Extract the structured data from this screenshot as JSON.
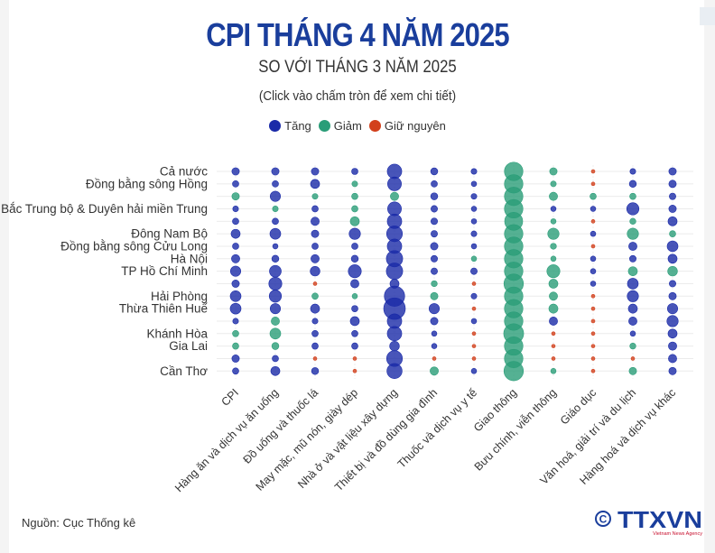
{
  "title": "CPI THÁNG 4 NĂM 2025",
  "subtitle": "SO VỚI THÁNG 3 NĂM 2025",
  "note": "(Click vào chấm tròn để xem chi tiết)",
  "legend": [
    {
      "label": "Tăng",
      "color": "#1a2aa8"
    },
    {
      "label": "Giảm",
      "color": "#2a9d78"
    },
    {
      "label": "Giữ nguyên",
      "color": "#d2401c"
    }
  ],
  "source": "Nguồn: Cục Thống kê",
  "logo": {
    "text": "TTXVN",
    "tagline": "Vietnam News Agency"
  },
  "chart_data": {
    "type": "scatter",
    "encoding": "bubble size = magnitude of change (estimated); blue = increase, green = decrease, red = unchanged",
    "categories": [
      "CPI",
      "Hàng ăn và dịch vụ ăn uống",
      "Đồ uống và thuốc lá",
      "May mặc, mũ nón, giày dép",
      "Nhà ở và vật liệu xây dựng",
      "Thiết bị và đồ dùng gia đình",
      "Thuốc và dịch vụ y tế",
      "Giao thông",
      "Bưu chính, viễn thông",
      "Giáo dục",
      "Văn hoá, giải trí và du lịch",
      "Hàng hoá và dịch vụ khác"
    ],
    "rows": [
      "Cả nước",
      "Đồng bằng sông Hồng",
      "",
      "Bắc Trung bộ & Duyên hải miền Trung",
      "",
      "Đông Nam Bộ",
      "Đồng bằng sông Cửu Long",
      "Hà Nội",
      "TP Hồ Chí Minh",
      "",
      "Hải Phòng",
      "Thừa Thiên Huế",
      "",
      "Khánh Hòa",
      "Gia Lai",
      "",
      "Cần Thơ"
    ],
    "values": [
      [
        0.1,
        0.1,
        0.1,
        0.05,
        0.8,
        0.08,
        0.03,
        -1.5,
        -0.1,
        0,
        0.03,
        0.1
      ],
      [
        0.05,
        0.05,
        0.2,
        -0.03,
        0.7,
        0.05,
        0.02,
        -1.5,
        -0.03,
        0,
        0.08,
        0.1
      ],
      [
        -0.1,
        0.3,
        -0.03,
        -0.05,
        -0.15,
        0.08,
        0.03,
        -1.5,
        -0.15,
        -0.05,
        -0.05,
        0.06
      ],
      [
        0.03,
        -0.03,
        0.05,
        -0.05,
        0.7,
        0.06,
        0.02,
        -1.5,
        0.02,
        0.02,
        0.5,
        0.1
      ],
      [
        0.05,
        0.05,
        0.15,
        -0.2,
        0.8,
        0.06,
        0.02,
        -1.4,
        -0.02,
        0,
        -0.04,
        0.2
      ],
      [
        0.2,
        0.35,
        0.1,
        0.4,
        1.0,
        0.06,
        0.03,
        -1.5,
        -0.4,
        0.02,
        -0.4,
        -0.05
      ],
      [
        0.05,
        0.02,
        0.05,
        0.05,
        0.8,
        0.1,
        0.02,
        -1.5,
        -0.04,
        0,
        0.15,
        0.35
      ],
      [
        0.15,
        0.08,
        0.15,
        0.08,
        1.1,
        0.06,
        -0.02,
        -1.5,
        -0.02,
        0.02,
        0.06,
        0.2
      ],
      [
        0.3,
        0.45,
        0.25,
        0.6,
        1.1,
        0.06,
        0.06,
        -1.5,
        -0.6,
        0.02,
        -0.2,
        -0.25
      ],
      [
        0.1,
        0.6,
        0,
        0.15,
        0.2,
        -0.04,
        0,
        -1.7,
        -0.2,
        0.02,
        0.35,
        0.06
      ],
      [
        0.35,
        0.5,
        -0.05,
        -0.02,
        1.9,
        -0.1,
        0.03,
        -1.5,
        -0.15,
        0,
        0.4,
        0.1
      ],
      [
        0.35,
        0.3,
        0.2,
        0.05,
        2.2,
        0.3,
        0,
        -1.5,
        -0.2,
        0,
        0.2,
        0.3
      ],
      [
        0.03,
        -0.15,
        0.03,
        0.2,
        0.8,
        0.1,
        0.02,
        -1.5,
        0.15,
        0,
        0.15,
        0.4
      ],
      [
        -0.05,
        -0.35,
        0.05,
        0.05,
        0.8,
        0.02,
        0,
        -1.8,
        0,
        0,
        0.02,
        0.2
      ],
      [
        -0.05,
        -0.08,
        0.05,
        0.05,
        0.25,
        0.02,
        0,
        -1.5,
        0,
        0,
        -0.04,
        0.15
      ],
      [
        0.1,
        0.05,
        0,
        0,
        1.0,
        0,
        0,
        -1.5,
        0,
        0,
        0,
        0.15
      ],
      [
        0.05,
        0.2,
        0.08,
        0,
        0.9,
        -0.15,
        0.02,
        -1.7,
        -0.02,
        0,
        -0.1,
        0.1
      ]
    ],
    "grid": true,
    "legend_position": "top"
  }
}
